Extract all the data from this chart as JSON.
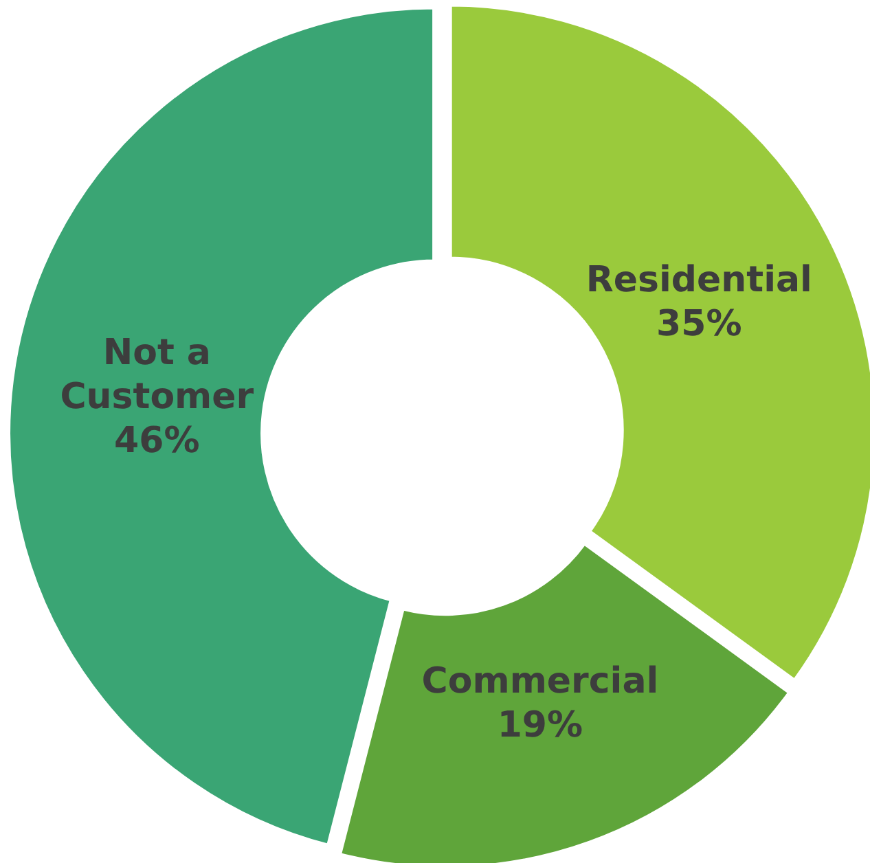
{
  "chart_data": {
    "type": "donut",
    "categories": [
      "Residential",
      "Commercial",
      "Not a Customer"
    ],
    "values": [
      35,
      19,
      46
    ],
    "colors": [
      "#9aca3c",
      "#5fa53a",
      "#3aa574"
    ],
    "value_labels": [
      "35%",
      "19%",
      "46%"
    ]
  }
}
